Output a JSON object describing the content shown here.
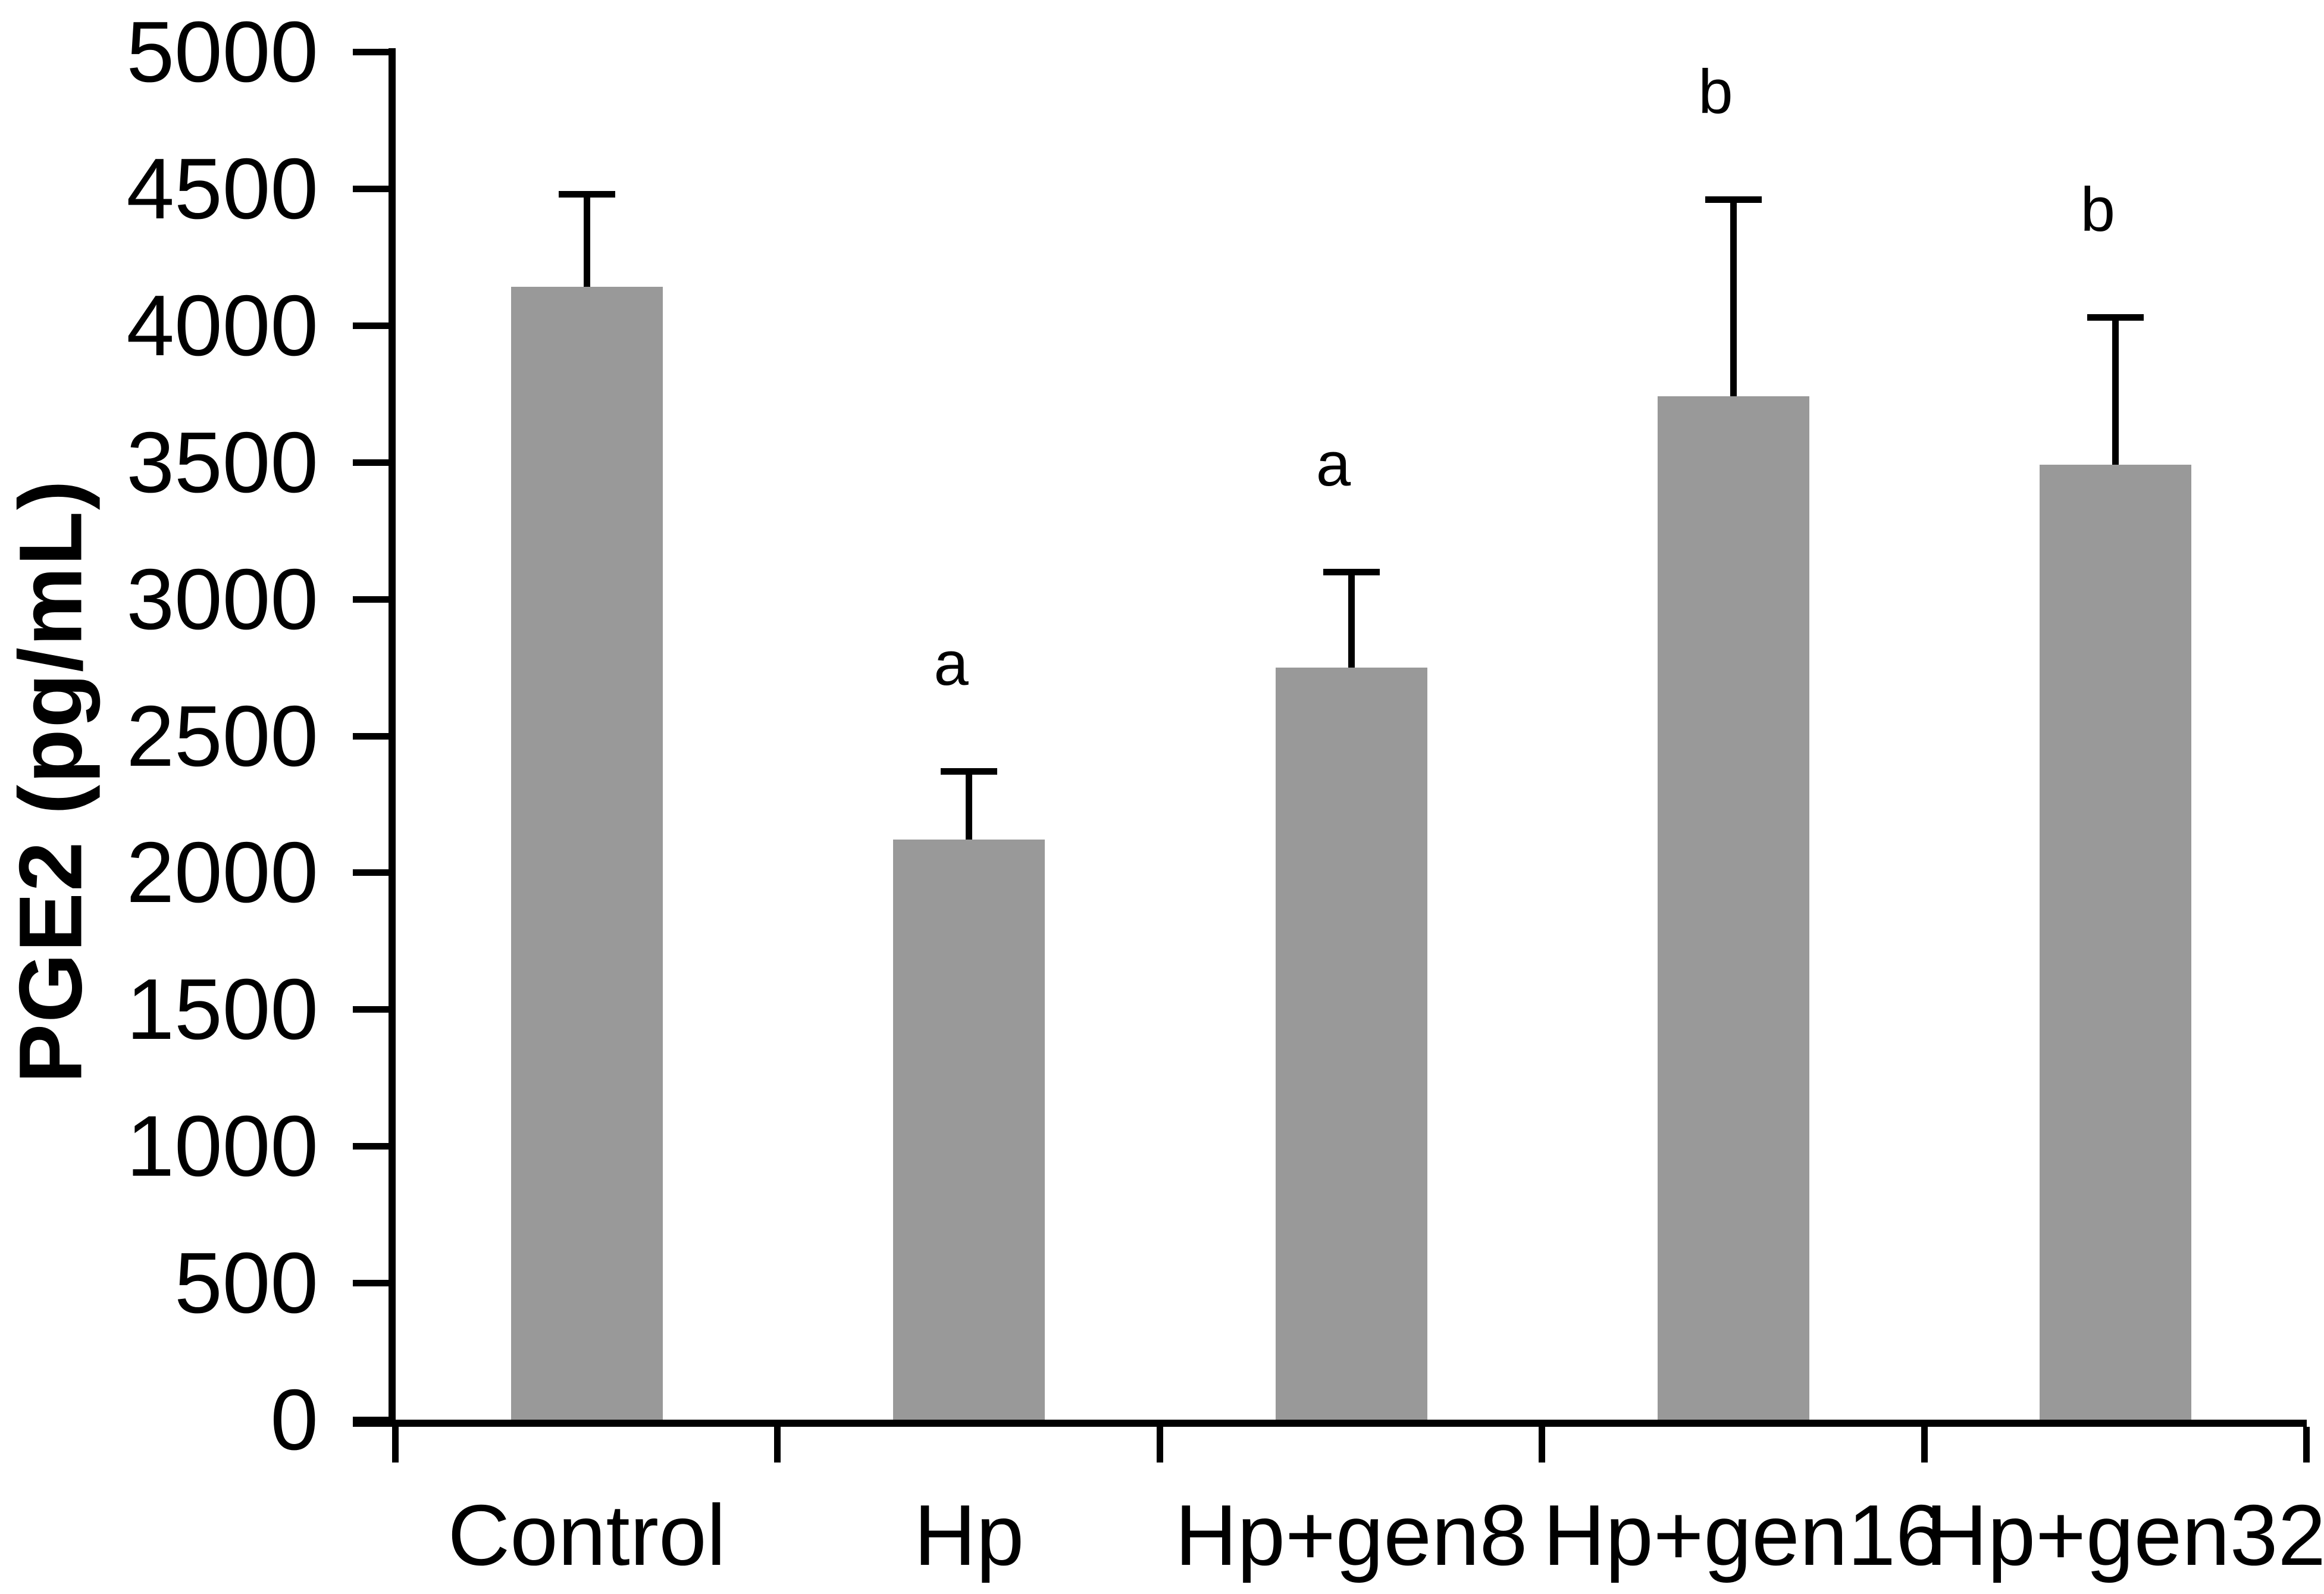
{
  "chart_data": {
    "type": "bar",
    "title": "",
    "xlabel": "",
    "ylabel": "PGE2 (pg/mL)",
    "categories": [
      "Control",
      "Hp",
      "Hp+gen8",
      "Hp+gen16",
      "Hp+gen32"
    ],
    "values": [
      4140,
      2120,
      2750,
      3740,
      3490
    ],
    "error_upper": [
      340,
      250,
      350,
      720,
      540
    ],
    "annotations": [
      "",
      "a",
      "a",
      "b",
      "b"
    ],
    "yticks": [
      0,
      500,
      1000,
      1500,
      2000,
      2500,
      3000,
      3500,
      4000,
      4500,
      5000
    ],
    "ylim": [
      0,
      5000
    ],
    "grid": false,
    "legend_position": "none",
    "bar_color": "#999999",
    "axis_color": "#000000",
    "text_color": "#000000"
  }
}
